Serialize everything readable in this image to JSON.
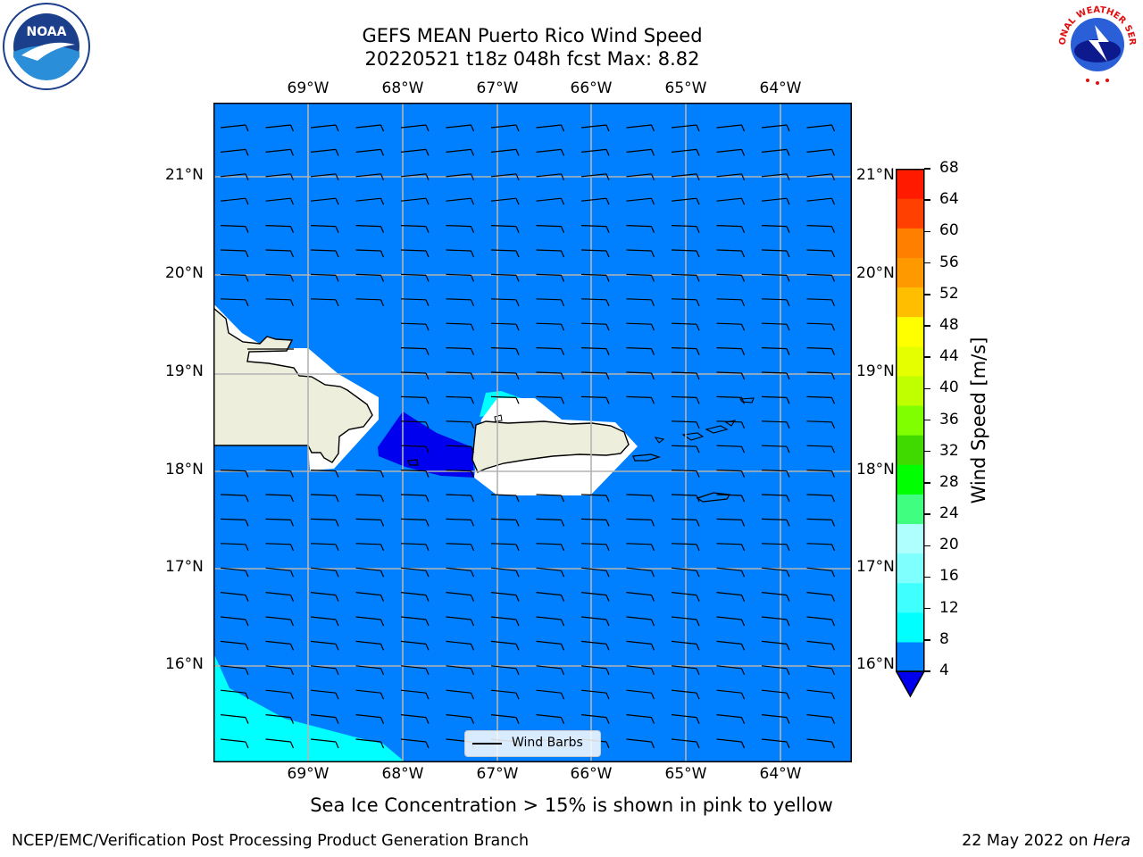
{
  "header": {
    "title_line1": "GEFS MEAN Puerto Rico Wind Speed",
    "title_line2": "20220521 t18z 048h fcst   Max: 8.82"
  },
  "logos": {
    "left": "NOAA",
    "left_ring": "NATIONAL OCEANIC AND ATMOSPHERIC ADMINISTRATION · U.S. DEPARTMENT OF COMMERCE",
    "right": "NATIONAL WEATHER SERVICE"
  },
  "map": {
    "lon_labels": [
      "69°W",
      "68°W",
      "67°W",
      "66°W",
      "65°W",
      "64°W"
    ],
    "lat_labels": [
      "21°N",
      "20°N",
      "19°N",
      "18°N",
      "17°N",
      "16°N"
    ],
    "legend_label": "Wind Barbs",
    "ocean_color": "#0080ff",
    "land_color": "#eeeedc"
  },
  "colorbar": {
    "label": "Wind Speed [m/s]",
    "ticks": [
      "4",
      "8",
      "12",
      "16",
      "20",
      "24",
      "28",
      "32",
      "36",
      "40",
      "44",
      "48",
      "52",
      "56",
      "60",
      "64",
      "68"
    ],
    "colors": [
      "#0080ff",
      "#00ffff",
      "#40ffff",
      "#80ffff",
      "#b0ffff",
      "#40ff80",
      "#00ff00",
      "#40d900",
      "#80ff00",
      "#c0ff00",
      "#e6ff00",
      "#ffff00",
      "#ffbf00",
      "#ff9900",
      "#ff7f00",
      "#ff4000",
      "#ff1a00"
    ],
    "under_color": "#0000ee"
  },
  "note": "Sea Ice Concentration > 15% is shown in pink to yellow",
  "footer": {
    "left": "NCEP/EMC/Verification Post Processing Product Generation Branch",
    "right_prefix": "22 May 2022 on ",
    "right_host": "Hera"
  }
}
